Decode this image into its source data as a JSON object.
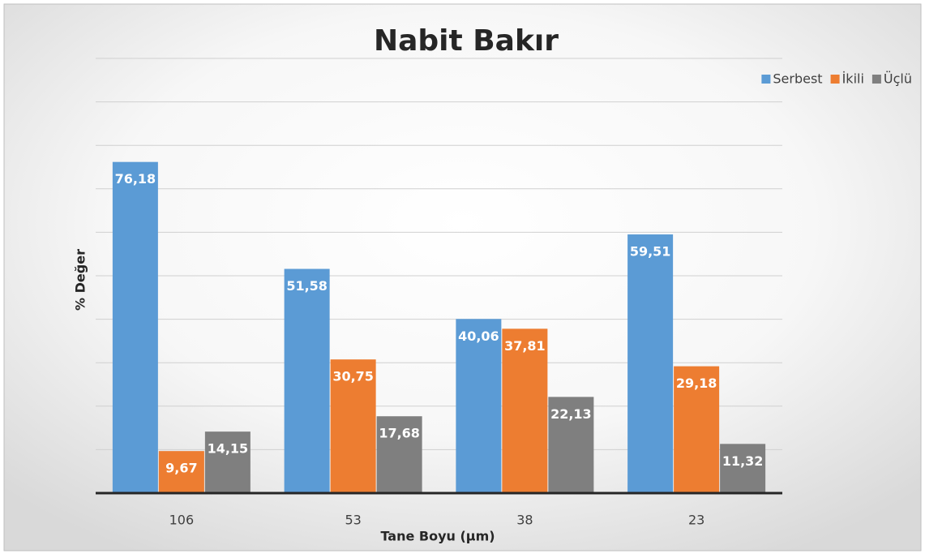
{
  "chart_data": {
    "type": "bar",
    "title": "Nabit Bakır",
    "x_label": "Tane Boyu (µm)",
    "y_label": "% Değer",
    "categories": [
      "106",
      "53",
      "38",
      "23"
    ],
    "series": [
      {
        "name": "Serbest",
        "color": "#5b9bd5",
        "values": [
          76.18,
          51.58,
          40.06,
          59.51
        ],
        "value_labels": [
          "76,18",
          "51,58",
          "40,06",
          "59,51"
        ]
      },
      {
        "name": "İkili",
        "color": "#ed7d31",
        "values": [
          9.67,
          30.75,
          37.81,
          29.18
        ],
        "value_labels": [
          "9,67",
          "30,75",
          "37,81",
          "29,18"
        ]
      },
      {
        "name": "Üçlü",
        "color": "#7f7f7f",
        "values": [
          14.15,
          17.68,
          22.13,
          11.32
        ],
        "value_labels": [
          "14,15",
          "17,68",
          "22,13",
          "11,32"
        ]
      }
    ],
    "ylim": [
      0,
      100
    ],
    "yticks": [
      0,
      10,
      20,
      30,
      40,
      50,
      60,
      70,
      80,
      90,
      100
    ],
    "grid": true,
    "legend": "top-right"
  }
}
